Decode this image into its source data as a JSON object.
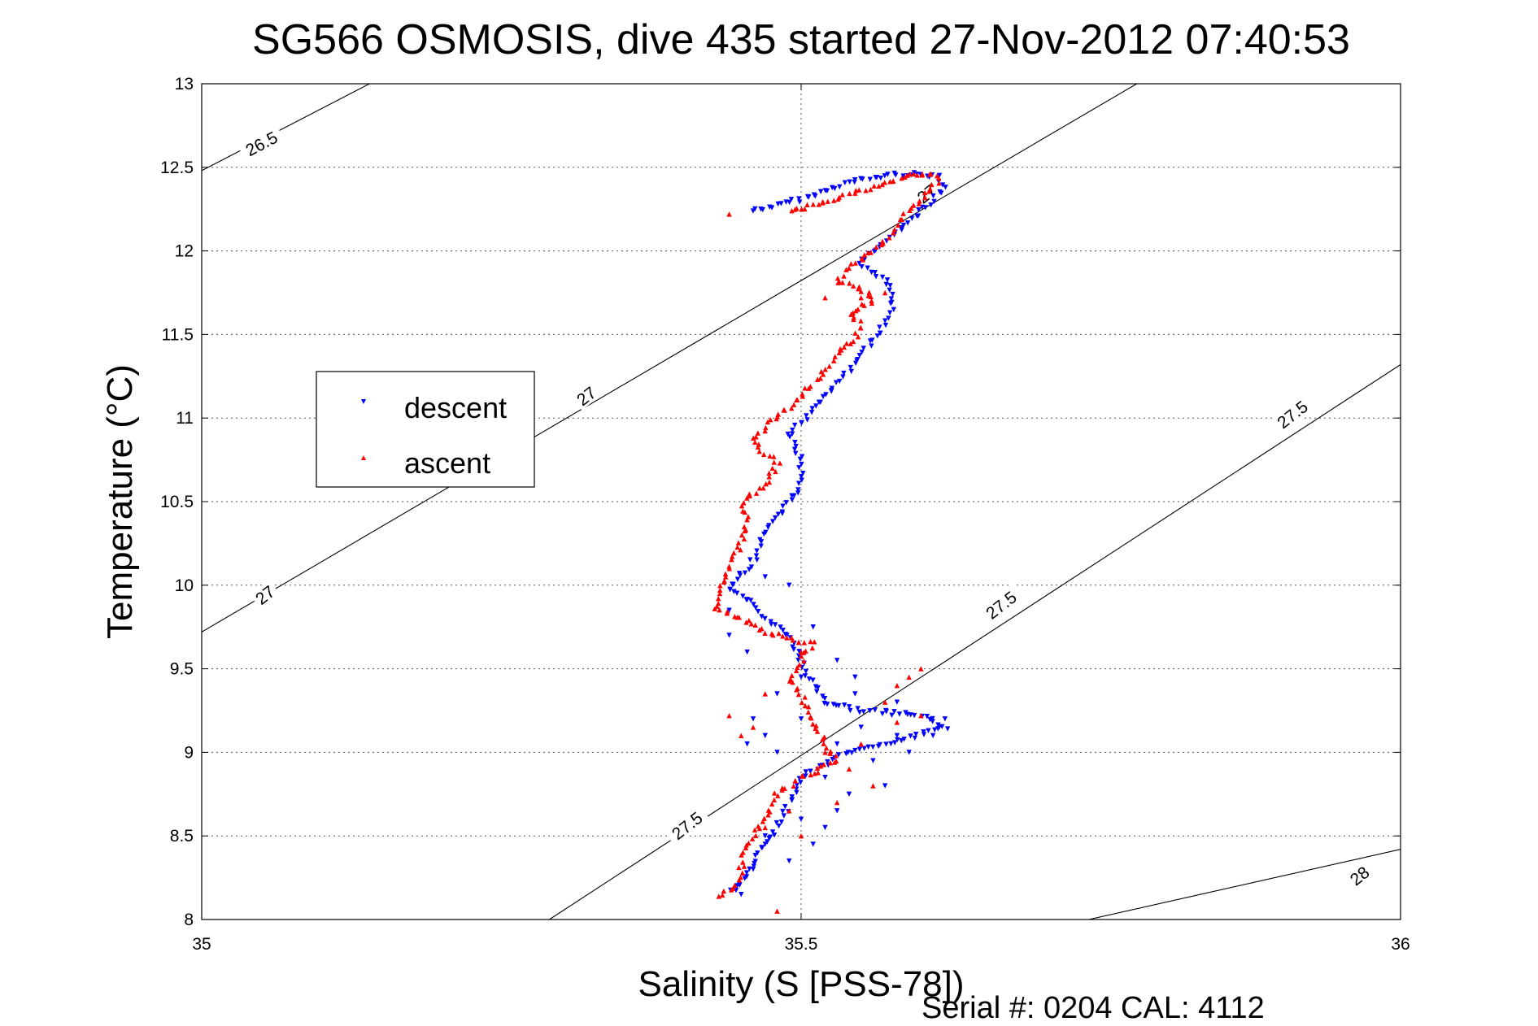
{
  "chart_data": {
    "type": "scatter",
    "title": "SG566 OSMOSIS, dive 435 started 27-Nov-2012 07:40:53",
    "xlabel": "Salinity (S [PSS-78])",
    "ylabel": "Temperature (°C)",
    "xlim": [
      35,
      36
    ],
    "ylim": [
      8,
      13
    ],
    "xticks": [
      "35",
      "35.5",
      "36"
    ],
    "yticks": [
      "8",
      "8.5",
      "9",
      "9.5",
      "10",
      "10.5",
      "11",
      "11.5",
      "12",
      "12.5",
      "13"
    ],
    "grid": true,
    "legend_position": "center-left",
    "footer": "Serial #: 0204  CAL: 4112",
    "density_contours": [
      {
        "label": "26.5",
        "points": [
          [
            35.0,
            12.48
          ],
          [
            35.14,
            13.0
          ]
        ]
      },
      {
        "label": "27",
        "points": [
          [
            35.0,
            9.72
          ],
          [
            35.78,
            13.0
          ]
        ]
      },
      {
        "label": "27.5",
        "points": [
          [
            35.29,
            8.0
          ],
          [
            36.0,
            11.32
          ]
        ]
      },
      {
        "label": "28",
        "points": [
          [
            35.74,
            8.0
          ],
          [
            36.0,
            8.42
          ]
        ]
      }
    ],
    "contour_labels": [
      {
        "text": "26.5",
        "x": 35.05,
        "y": 12.64,
        "angle": -28
      },
      {
        "text": "27",
        "x": 35.321,
        "y": 11.13,
        "angle": -38
      },
      {
        "text": "27",
        "x": 35.053,
        "y": 9.94,
        "angle": -38
      },
      {
        "text": "27",
        "x": 35.605,
        "y": 12.34,
        "angle": -38
      },
      {
        "text": "27.5",
        "x": 35.91,
        "y": 11.02,
        "angle": -38
      },
      {
        "text": "27.5",
        "x": 35.667,
        "y": 9.88,
        "angle": -38
      },
      {
        "text": "27.5",
        "x": 35.405,
        "y": 8.56,
        "angle": -38
      },
      {
        "text": "28",
        "x": 35.966,
        "y": 8.26,
        "angle": -38
      }
    ],
    "series": [
      {
        "name": "descent",
        "color": "#0000ff",
        "marker": "triangle-down",
        "path": [
          [
            35.46,
            12.24
          ],
          [
            35.48,
            12.27
          ],
          [
            35.51,
            12.33
          ],
          [
            35.54,
            12.41
          ],
          [
            35.58,
            12.46
          ],
          [
            35.615,
            12.45
          ],
          [
            35.62,
            12.38
          ],
          [
            35.61,
            12.3
          ],
          [
            35.595,
            12.2
          ],
          [
            35.58,
            12.1
          ],
          [
            35.56,
            12.0
          ],
          [
            35.55,
            11.92
          ],
          [
            35.57,
            11.83
          ],
          [
            35.575,
            11.75
          ],
          [
            35.575,
            11.65
          ],
          [
            35.57,
            11.58
          ],
          [
            35.565,
            11.5
          ],
          [
            35.55,
            11.38
          ],
          [
            35.54,
            11.28
          ],
          [
            35.53,
            11.2
          ],
          [
            35.51,
            11.05
          ],
          [
            35.49,
            10.9
          ],
          [
            35.5,
            10.75
          ],
          [
            35.5,
            10.6
          ],
          [
            35.485,
            10.45
          ],
          [
            35.47,
            10.32
          ],
          [
            35.465,
            10.2
          ],
          [
            35.455,
            10.1
          ],
          [
            35.44,
            9.98
          ],
          [
            35.46,
            9.9
          ],
          [
            35.47,
            9.8
          ],
          [
            35.49,
            9.7
          ],
          [
            35.5,
            9.55
          ],
          [
            35.51,
            9.4
          ],
          [
            35.52,
            9.3
          ],
          [
            35.55,
            9.25
          ],
          [
            35.6,
            9.22
          ],
          [
            35.62,
            9.15
          ],
          [
            35.57,
            9.05
          ],
          [
            35.53,
            8.97
          ],
          [
            35.5,
            8.85
          ],
          [
            35.49,
            8.7
          ],
          [
            35.48,
            8.55
          ],
          [
            35.465,
            8.4
          ],
          [
            35.455,
            8.25
          ],
          [
            35.44,
            8.15
          ]
        ],
        "scatter": [
          [
            35.47,
            9.1
          ],
          [
            35.46,
            9.2
          ],
          [
            35.48,
            9.35
          ],
          [
            35.5,
            9.45
          ],
          [
            35.53,
            9.05
          ],
          [
            35.56,
            8.95
          ],
          [
            35.59,
            9.0
          ],
          [
            35.58,
            9.1
          ],
          [
            35.55,
            9.15
          ],
          [
            35.52,
            8.85
          ],
          [
            35.54,
            8.75
          ],
          [
            35.5,
            8.6
          ],
          [
            35.47,
            8.5
          ],
          [
            35.51,
            8.45
          ],
          [
            35.49,
            8.35
          ],
          [
            35.46,
            8.3
          ],
          [
            35.52,
            8.55
          ],
          [
            35.57,
            8.8
          ],
          [
            35.61,
            9.1
          ],
          [
            35.44,
            9.7
          ],
          [
            35.455,
            9.6
          ],
          [
            35.51,
            9.75
          ],
          [
            35.53,
            9.55
          ],
          [
            35.545,
            9.35
          ],
          [
            35.49,
            10.0
          ],
          [
            35.47,
            10.05
          ],
          [
            35.44,
            9.85
          ],
          [
            35.62,
            9.2
          ],
          [
            35.58,
            9.3
          ],
          [
            35.545,
            9.45
          ],
          [
            35.5,
            9.2
          ],
          [
            35.48,
            9.0
          ],
          [
            35.455,
            9.05
          ],
          [
            35.53,
            8.65
          ],
          [
            35.45,
            8.15
          ],
          [
            35.47,
            8.45
          ]
        ]
      },
      {
        "name": "ascent",
        "color": "#ff0000",
        "marker": "triangle-up",
        "path": [
          [
            35.49,
            12.23
          ],
          [
            35.52,
            12.3
          ],
          [
            35.56,
            12.38
          ],
          [
            35.585,
            12.44
          ],
          [
            35.6,
            12.47
          ],
          [
            35.615,
            12.43
          ],
          [
            35.6,
            12.3
          ],
          [
            35.585,
            12.2
          ],
          [
            35.575,
            12.1
          ],
          [
            35.56,
            12.0
          ],
          [
            35.54,
            11.9
          ],
          [
            35.53,
            11.82
          ],
          [
            35.555,
            11.76
          ],
          [
            35.56,
            11.7
          ],
          [
            35.54,
            11.63
          ],
          [
            35.55,
            11.55
          ],
          [
            35.545,
            11.47
          ],
          [
            35.53,
            11.38
          ],
          [
            35.52,
            11.3
          ],
          [
            35.51,
            11.2
          ],
          [
            35.49,
            11.07
          ],
          [
            35.47,
            10.95
          ],
          [
            35.46,
            10.85
          ],
          [
            35.48,
            10.73
          ],
          [
            35.47,
            10.6
          ],
          [
            35.45,
            10.5
          ],
          [
            35.455,
            10.38
          ],
          [
            35.45,
            10.25
          ],
          [
            35.44,
            10.1
          ],
          [
            35.43,
            9.97
          ],
          [
            35.43,
            9.85
          ],
          [
            35.45,
            9.8
          ],
          [
            35.47,
            9.72
          ],
          [
            35.49,
            9.68
          ],
          [
            35.51,
            9.65
          ],
          [
            35.5,
            9.55
          ],
          [
            35.49,
            9.45
          ],
          [
            35.5,
            9.35
          ],
          [
            35.51,
            9.2
          ],
          [
            35.52,
            9.05
          ],
          [
            35.53,
            8.95
          ],
          [
            35.5,
            8.85
          ],
          [
            35.48,
            8.75
          ],
          [
            35.47,
            8.6
          ],
          [
            35.455,
            8.45
          ],
          [
            35.45,
            8.3
          ],
          [
            35.445,
            8.2
          ],
          [
            35.43,
            8.12
          ]
        ],
        "scatter": [
          [
            35.44,
            12.22
          ],
          [
            35.57,
            11.75
          ],
          [
            35.55,
            11.72
          ],
          [
            35.52,
            11.72
          ],
          [
            35.55,
            9.05
          ],
          [
            35.52,
            9.0
          ],
          [
            35.54,
            8.9
          ],
          [
            35.56,
            8.8
          ],
          [
            35.58,
            9.4
          ],
          [
            35.59,
            9.45
          ],
          [
            35.6,
            9.5
          ],
          [
            35.57,
            9.3
          ],
          [
            35.6,
            9.22
          ],
          [
            35.58,
            9.18
          ],
          [
            35.46,
            9.15
          ],
          [
            35.44,
            9.22
          ],
          [
            35.47,
            9.35
          ],
          [
            35.5,
            8.5
          ],
          [
            35.47,
            8.55
          ],
          [
            35.49,
            8.65
          ],
          [
            35.45,
            9.1
          ],
          [
            35.5,
            9.6
          ],
          [
            35.48,
            8.05
          ],
          [
            35.53,
            8.7
          ]
        ]
      }
    ]
  }
}
